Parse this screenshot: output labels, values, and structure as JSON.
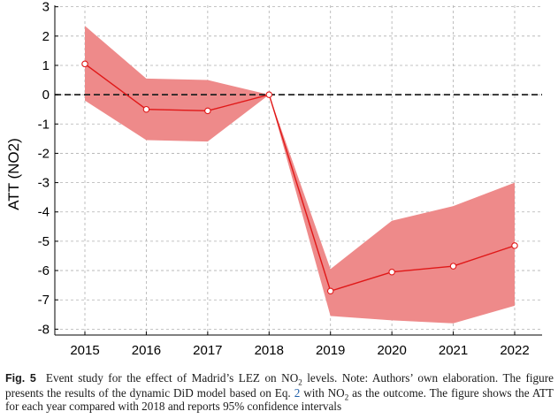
{
  "chart_data": {
    "type": "line",
    "title": "",
    "xlabel": "",
    "ylabel": "ATT (NO2)",
    "categories": [
      "2015",
      "2016",
      "2017",
      "2018",
      "2019",
      "2020",
      "2021",
      "2022"
    ],
    "series": [
      {
        "name": "ATT",
        "values": [
          1.05,
          -0.5,
          -0.55,
          0.0,
          -6.7,
          -6.05,
          -5.85,
          -5.15
        ],
        "ci_lower": [
          -0.2,
          -1.55,
          -1.6,
          0.0,
          -7.55,
          -7.7,
          -7.8,
          -7.2
        ],
        "ci_upper": [
          2.35,
          0.55,
          0.5,
          0.0,
          -5.95,
          -4.3,
          -3.8,
          -3.0
        ]
      }
    ],
    "ylim": [
      -8.2,
      3.05
    ],
    "yticks": [
      "3",
      "2",
      "1",
      "0",
      "-1",
      "-2",
      "-3",
      "-4",
      "-5",
      "-6",
      "-7",
      "-8"
    ],
    "ytick_values": [
      3,
      2,
      1,
      0,
      -1,
      -2,
      -3,
      -4,
      -5,
      -6,
      -7,
      -8
    ],
    "reference_line": 0,
    "grid": true,
    "colors": {
      "line": "#e01818",
      "band": "#ee8a8a",
      "grid": "#b0b0b0",
      "reference": "#222222"
    }
  },
  "caption": {
    "label": "Fig. 5",
    "part1": "Event study for the effect of Madrid’s LEZ on NO",
    "sub1": "2",
    "part2": " levels. Note: Authors’ own elaboration. The figure presents the results of the dynamic DiD model based on Eq. ",
    "eq_ref": "2",
    "part3": " with NO",
    "sub2": "2",
    "part4": " as the outcome. The figure shows the ATT for each year compared with 2018 and reports 95% confidence intervals"
  }
}
